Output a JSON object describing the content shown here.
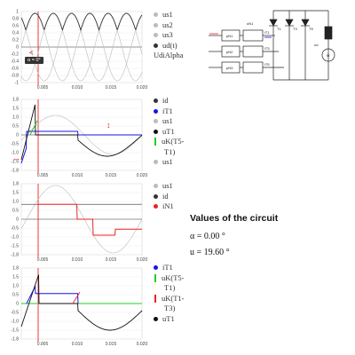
{
  "colors": {
    "red": "#ee2222",
    "blue": "#1515ee",
    "green": "#22cc22",
    "black": "#111111",
    "gray": "#bbbbbb",
    "dark": "#333333"
  },
  "x_ticks": [
    "0.005",
    "0.010",
    "0.015",
    "0.020"
  ],
  "panels": [
    {
      "id": "p1",
      "yticks": [
        "1",
        "0.8",
        "0.6",
        "0.4",
        "0.2",
        "0",
        "-0.2",
        "-0.4",
        "-0.6",
        "-0.8",
        "-1"
      ],
      "ylim": [
        -1,
        1
      ],
      "legend": [
        {
          "label": "us1",
          "color": "#bbbbbb",
          "shape": "dot"
        },
        {
          "label": "us2",
          "color": "#bbbbbb",
          "shape": "dot"
        },
        {
          "label": "us3",
          "color": "#bbbbbb",
          "shape": "dot"
        },
        {
          "label": "ud(t)",
          "color": "#333333",
          "shape": "dot"
        },
        {
          "label": "UdiAlpha",
          "color": "",
          "shape": "none"
        }
      ]
    },
    {
      "id": "p2",
      "yticks": [
        "1.8",
        "1.5",
        "1.0",
        "0.5",
        "0",
        "-0.5",
        "-1.0",
        "-1.5",
        "-1.8"
      ],
      "ylim": [
        -1.8,
        1.8
      ],
      "legend": [
        {
          "label": "id",
          "color": "#333333",
          "shape": "dot"
        },
        {
          "label": "iT1",
          "color": "#1515ee",
          "shape": "dot"
        },
        {
          "label": "us1",
          "color": "#bbbbbb",
          "shape": "dot"
        },
        {
          "label": "uT1",
          "color": "#111111",
          "shape": "dot"
        },
        {
          "label": "uK(T5-",
          "color": "#22cc22",
          "shape": "bar"
        },
        {
          "label": "T1)",
          "color": "",
          "shape": "none"
        },
        {
          "label": "us1",
          "color": "#bbbbbb",
          "shape": "dot"
        }
      ]
    },
    {
      "id": "p3",
      "yticks": [
        "1.8",
        "1.5",
        "1.0",
        "0.5",
        "0",
        "-0.5",
        "-1.0",
        "-1.5",
        "-1.8"
      ],
      "ylim": [
        -1.8,
        1.8
      ],
      "legend": [
        {
          "label": "us1",
          "color": "#bbbbbb",
          "shape": "dot"
        },
        {
          "label": "id",
          "color": "#333333",
          "shape": "dot"
        },
        {
          "label": "iN1",
          "color": "#ee2222",
          "shape": "dot"
        }
      ]
    },
    {
      "id": "p4",
      "yticks": [
        "1.8",
        "1.5",
        "1.0",
        "0.5",
        "0",
        "-0.5",
        "-1.0",
        "-1.5",
        "-1.8"
      ],
      "ylim": [
        -1.8,
        1.8
      ],
      "legend": [
        {
          "label": "iT1",
          "color": "#1515ee",
          "shape": "dot"
        },
        {
          "label": "uK(T5-",
          "color": "#22cc22",
          "shape": "bar"
        },
        {
          "label": "T1)",
          "color": "",
          "shape": "none"
        },
        {
          "label": "uK(T1-",
          "color": "#ee2222",
          "shape": "bar"
        },
        {
          "label": "T3)",
          "color": "",
          "shape": "none"
        },
        {
          "label": "uT1",
          "color": "#111111",
          "shape": "dot"
        }
      ]
    }
  ],
  "alpha_badge": "α = 0°",
  "circuit_labels": {
    "t1": "T1",
    "t3": "T3",
    "t5": "T5",
    "ud": "ud",
    "m": "M",
    "l1": "uN1",
    "l2": "uN2",
    "l3": "uN3",
    "rows": [
      "pN1",
      "pN2",
      "pN3"
    ],
    "right_rows": [
      "iT1",
      "iT3",
      "iT5"
    ]
  },
  "values": {
    "title": "Values of the circuit",
    "alpha": "α = 0.00 °",
    "u": "u = 19.60 °"
  }
}
